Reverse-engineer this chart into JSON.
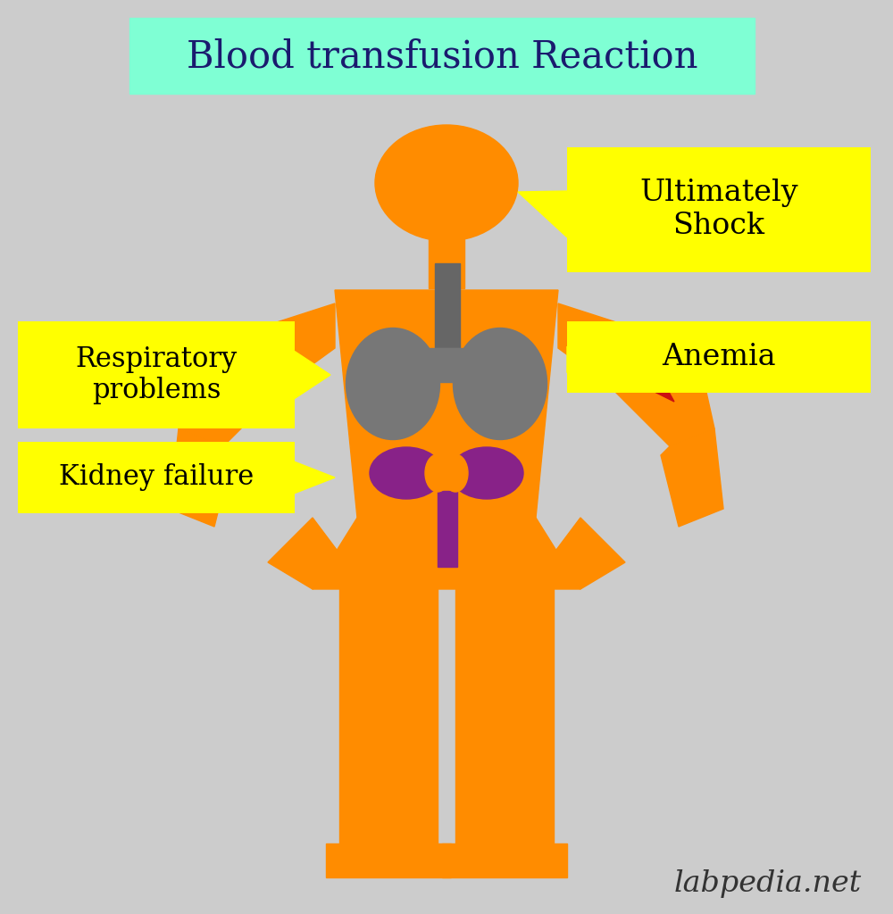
{
  "title": "Blood transfusion Reaction",
  "title_bg": "#7FFFD4",
  "title_color": "#1a1a6e",
  "bg_color": "#cccccc",
  "body_color": "#FF8C00",
  "lung_color": "#777777",
  "kidney_color": "#882288",
  "trachea_color": "#666666",
  "blood_color": "#CC1111",
  "label_bg": "#FFFF00",
  "label_color": "#000000",
  "watermark": "labpedia.net",
  "labels": {
    "shock": "Ultimately\nShock",
    "respiratory": "Respiratory\nproblems",
    "kidney": "Kidney failure",
    "anemia": "Anemia"
  }
}
